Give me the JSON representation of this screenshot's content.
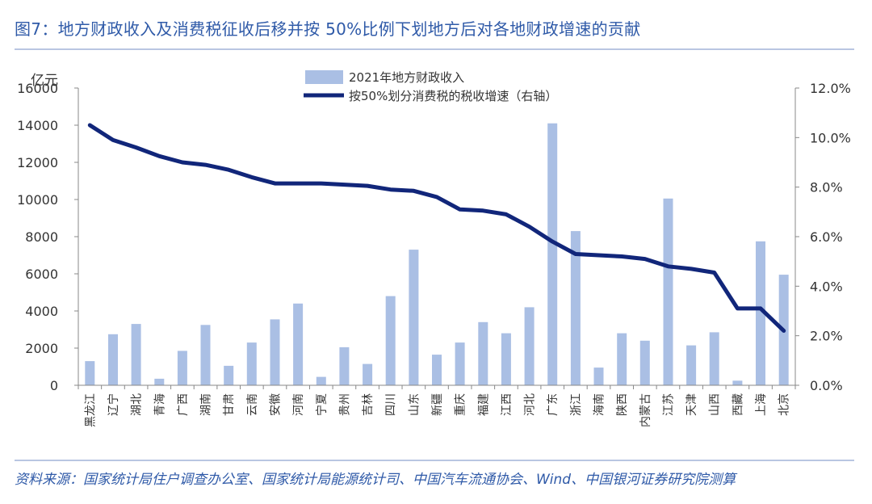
{
  "figure": {
    "title": "图7：地方财政收入及消费税征收后移并按 50%比例下划地方后对各地财政增速的贡献",
    "source": "资料来源：国家统计局住户调查办公室、国家统计局能源统计司、中国汽车流通协会、Wind、中国银河证券研究院测算"
  },
  "colors": {
    "bar": "#aabfe4",
    "line": "#11267a",
    "text": "#333333",
    "title": "#2f5aa8"
  },
  "chart_data": {
    "type": "bar",
    "title": "",
    "y_unit_label": "亿元",
    "ylim": [
      0,
      16000
    ],
    "y_ticks": [
      0,
      2000,
      4000,
      6000,
      8000,
      10000,
      12000,
      14000,
      16000
    ],
    "y2lim": [
      0,
      12
    ],
    "y2_ticks": [
      "0.0%",
      "2.0%",
      "4.0%",
      "6.0%",
      "8.0%",
      "10.0%",
      "12.0%"
    ],
    "y2_tick_values": [
      0,
      2,
      4,
      6,
      8,
      10,
      12
    ],
    "grid": false,
    "legend_position": "top-center",
    "categories": [
      "黑龙江",
      "辽宁",
      "湖北",
      "青海",
      "广西",
      "湖南",
      "甘肃",
      "云南",
      "安徽",
      "河南",
      "宁夏",
      "贵州",
      "吉林",
      "四川",
      "山东",
      "新疆",
      "重庆",
      "福建",
      "江西",
      "河北",
      "广东",
      "浙江",
      "海南",
      "陕西",
      "内蒙古",
      "江苏",
      "天津",
      "山西",
      "西藏",
      "上海",
      "北京"
    ],
    "series": [
      {
        "name": "2021年地方财政收入",
        "type": "bar",
        "axis": "left",
        "values": [
          1300,
          2750,
          3300,
          350,
          1850,
          3250,
          1050,
          2300,
          3550,
          4400,
          450,
          2050,
          1150,
          4800,
          7300,
          1650,
          2300,
          3400,
          2800,
          4200,
          14100,
          8300,
          950,
          2800,
          2400,
          10050,
          2150,
          2850,
          250,
          7750,
          5950
        ]
      },
      {
        "name": "按50%划分消费税的税收增速（右轴）",
        "type": "line",
        "axis": "right",
        "values": [
          10.5,
          9.9,
          9.6,
          9.25,
          9.0,
          8.9,
          8.7,
          8.4,
          8.15,
          8.15,
          8.15,
          8.1,
          8.05,
          7.9,
          7.85,
          7.6,
          7.1,
          7.05,
          6.9,
          6.4,
          5.8,
          5.3,
          5.25,
          5.2,
          5.1,
          4.8,
          4.7,
          4.55,
          3.1,
          3.1,
          2.2
        ]
      }
    ]
  }
}
